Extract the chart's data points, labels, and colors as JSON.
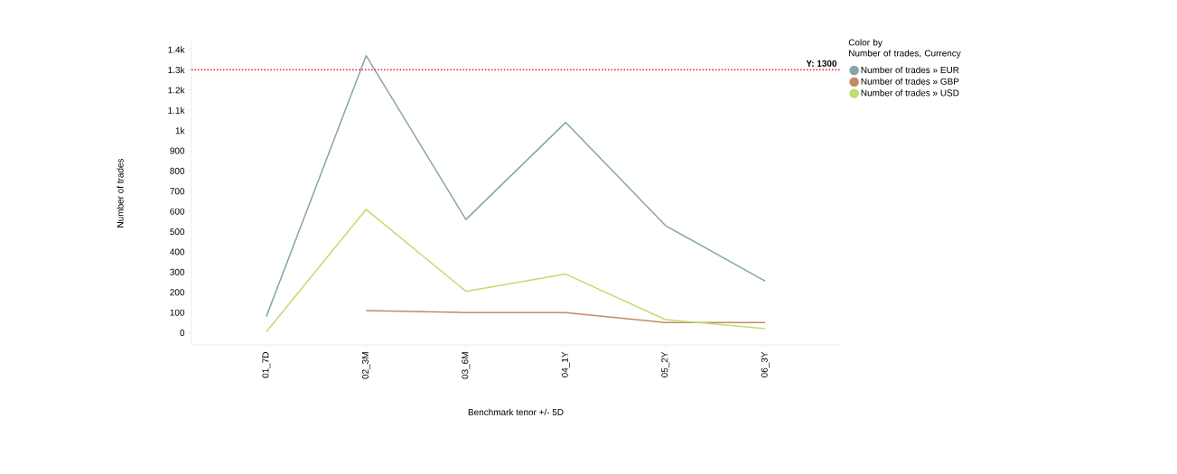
{
  "chart_data": {
    "type": "line",
    "xlabel": "Benchmark tenor +/- 5D",
    "ylabel": "Number of trades",
    "legend_title": "Color by\nNumber of trades, Currency",
    "categories": [
      "01_7D",
      "02_3M",
      "03_6M",
      "04_1Y",
      "05_2Y",
      "06_3Y"
    ],
    "series": [
      {
        "name": "Number of trades » EUR",
        "color": "#86a5a5",
        "values": [
          80,
          1370,
          560,
          1040,
          530,
          255
        ]
      },
      {
        "name": "Number of trades » GBP",
        "color": "#c38b62",
        "values": [
          null,
          110,
          100,
          100,
          50,
          50
        ]
      },
      {
        "name": "Number of trades » USD",
        "color": "#bddd6f",
        "values": [
          5,
          610,
          205,
          290,
          65,
          20
        ]
      }
    ],
    "ylim": [
      -60,
      1440
    ],
    "yticks": [
      0,
      100,
      200,
      300,
      400,
      500,
      600,
      700,
      800,
      900,
      {
        "value": 1000,
        "label": "1k"
      },
      {
        "value": 1100,
        "label": "1.1k"
      },
      {
        "value": 1200,
        "label": "1.2k"
      },
      {
        "value": 1300,
        "label": "1.3k"
      },
      {
        "value": 1400,
        "label": "1.4k"
      }
    ],
    "ref_lines": [
      {
        "axis": "y",
        "value": 1300,
        "label": "Y: 1300",
        "color": "#e02020",
        "line_style": "dotted"
      }
    ],
    "legend": "top right",
    "grid": false,
    "marker": "none",
    "line_style": "solid"
  }
}
